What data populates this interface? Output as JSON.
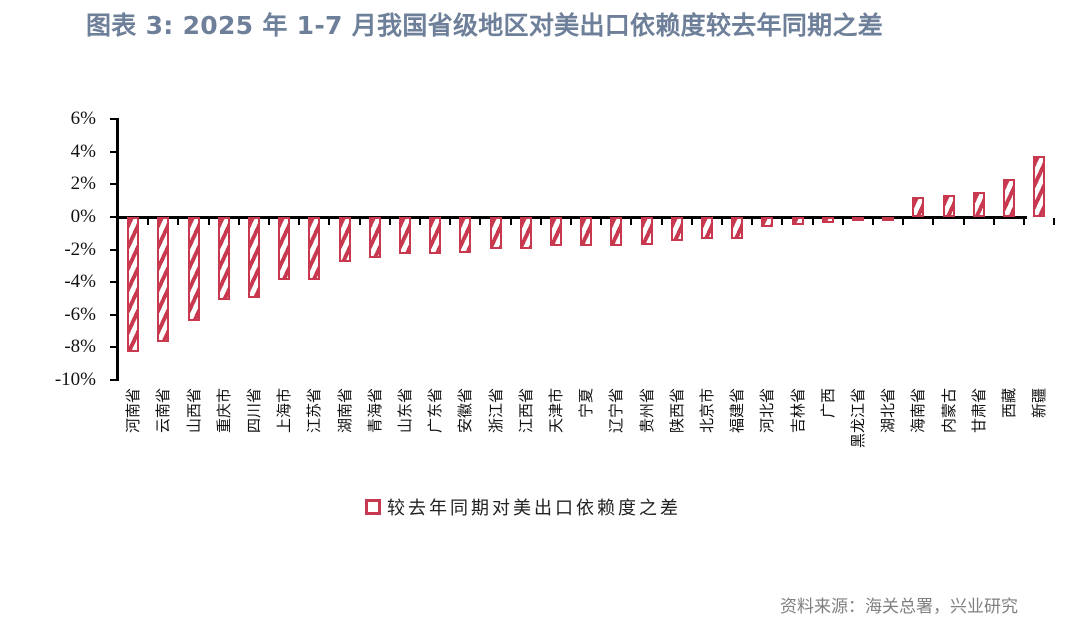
{
  "title": "图表  3:  2025 年 1-7 月我国省级地区对美出口依赖度较去年同期之差",
  "source": "资料来源：海关总署，兴业研究",
  "colors": {
    "bar": "#c8384f",
    "title": "#6e7f99",
    "axis": "#000000"
  },
  "chart_data": {
    "type": "bar",
    "title": "2025 年 1-7 月我国省级地区对美出口依赖度较去年同期之差",
    "xlabel": "",
    "ylabel": "",
    "ylim": [
      -10,
      6
    ],
    "yticks": [
      "6%",
      "4%",
      "2%",
      "0%",
      "-2%",
      "-4%",
      "-6%",
      "-8%",
      "-10%"
    ],
    "grid": false,
    "legend_position": "bottom",
    "categories": [
      "河南省",
      "云南省",
      "山西省",
      "重庆市",
      "四川省",
      "上海市",
      "江苏省",
      "湖南省",
      "青海省",
      "山东省",
      "广东省",
      "安徽省",
      "浙江省",
      "江西省",
      "天津市",
      "宁夏",
      "辽宁省",
      "贵州省",
      "陕西省",
      "北京市",
      "福建省",
      "河北省",
      "吉林省",
      "广西",
      "黑龙江省",
      "湖北省",
      "海南省",
      "内蒙古",
      "甘肃省",
      "西藏",
      "新疆"
    ],
    "series": [
      {
        "name": "较去年同期对美出口依赖度之差",
        "unit": "%",
        "values": [
          -8.3,
          -7.7,
          -6.4,
          -5.1,
          -5.0,
          -3.85,
          -3.85,
          -2.75,
          -2.5,
          -2.25,
          -2.25,
          -2.2,
          -1.95,
          -1.95,
          -1.8,
          -1.8,
          -1.8,
          -1.75,
          -1.45,
          -1.35,
          -1.35,
          -0.65,
          -0.5,
          -0.35,
          -0.2,
          -0.15,
          1.2,
          1.35,
          1.5,
          2.3,
          3.75
        ]
      }
    ]
  },
  "legend": {
    "label": "较去年同期对美出口依赖度之差"
  }
}
